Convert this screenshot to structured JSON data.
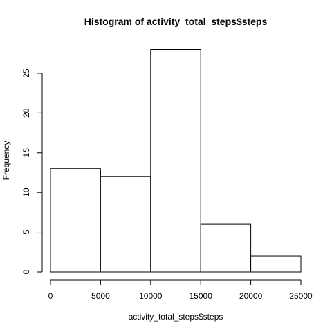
{
  "chart_data": {
    "type": "bar",
    "title": "Histogram of activity_total_steps$steps",
    "xlabel": "activity_total_steps$steps",
    "ylabel": "Frequency",
    "bins": [
      {
        "from": 0,
        "to": 5000,
        "count": 13
      },
      {
        "from": 5000,
        "to": 10000,
        "count": 12
      },
      {
        "from": 10000,
        "to": 15000,
        "count": 28
      },
      {
        "from": 15000,
        "to": 20000,
        "count": 6
      },
      {
        "from": 20000,
        "to": 25000,
        "count": 2
      }
    ],
    "xlim": [
      0,
      25000
    ],
    "ylim": [
      0,
      28
    ],
    "x_ticks": [
      0,
      5000,
      10000,
      15000,
      20000,
      25000
    ],
    "y_ticks": [
      0,
      5,
      10,
      15,
      20,
      25
    ],
    "grid": false
  }
}
